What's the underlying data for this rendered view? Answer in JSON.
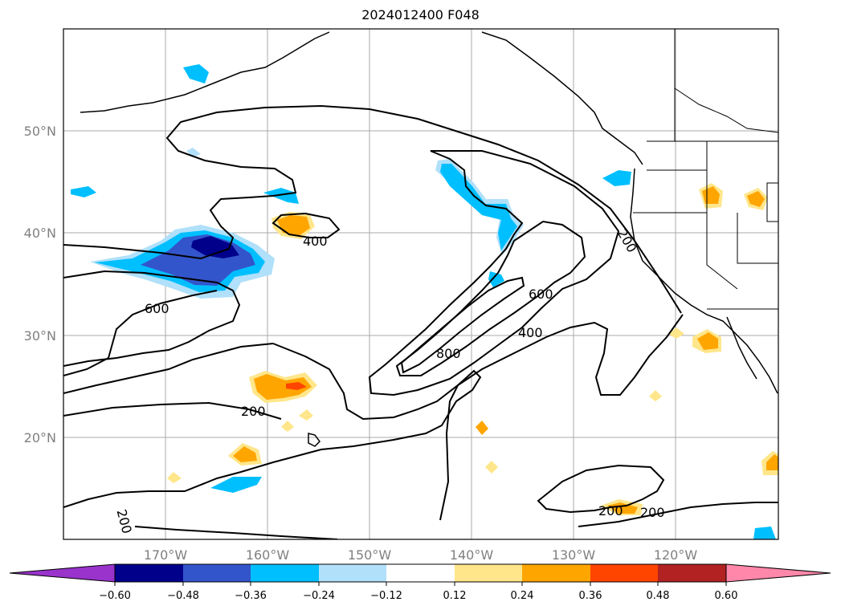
{
  "title": "2024012400 F048",
  "map": {
    "lon_ticks": [
      "170°W",
      "160°W",
      "150°W",
      "140°W",
      "130°W",
      "120°W"
    ],
    "lat_ticks": [
      "50°N",
      "40°N",
      "30°N",
      "20°N"
    ],
    "contour_labels": [
      "400",
      "200",
      "600",
      "800",
      "600",
      "400",
      "200",
      "200",
      "200",
      "200"
    ],
    "grid": true
  },
  "colorbar": {
    "ticks": [
      "−0.60",
      "−0.48",
      "−0.36",
      "−0.24",
      "−0.12",
      "0.12",
      "0.24",
      "0.36",
      "0.48",
      "0.60"
    ],
    "colors": [
      "#9933cc",
      "#00008b",
      "#3355cc",
      "#00bfff",
      "#b0e0fa",
      "#ffffff",
      "#ffe68a",
      "#ffa500",
      "#ff4500",
      "#b22222",
      "#ff88aa"
    ],
    "extend": "both"
  },
  "colors": {
    "grid": "#aaaaaa",
    "tick_text": "#808080",
    "contour": "#000000"
  }
}
